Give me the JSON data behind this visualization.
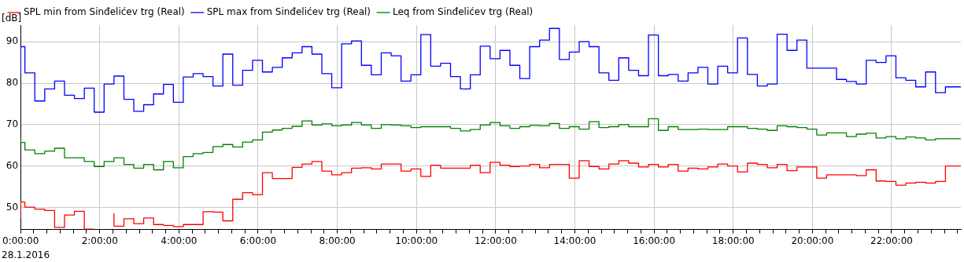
{
  "chart_data": {
    "type": "step",
    "ylabel": "[dB]",
    "annotations": [
      "28.1.2016"
    ],
    "x": [
      0,
      0.11,
      0.36,
      0.61,
      0.86,
      1.11,
      1.36,
      1.61,
      1.86,
      2.11,
      2.36,
      2.61,
      2.86,
      3.11,
      3.36,
      3.61,
      3.86,
      4.11,
      4.36,
      4.61,
      4.86,
      5.11,
      5.36,
      5.61,
      5.86,
      6.11,
      6.36,
      6.61,
      6.86,
      7.11,
      7.36,
      7.61,
      7.86,
      8.11,
      8.36,
      8.61,
      8.86,
      9.11,
      9.36,
      9.61,
      9.86,
      10.11,
      10.36,
      10.61,
      10.86,
      11.11,
      11.36,
      11.61,
      11.86,
      12.11,
      12.36,
      12.61,
      12.86,
      13.11,
      13.36,
      13.61,
      13.86,
      14.11,
      14.36,
      14.61,
      14.86,
      15.11,
      15.36,
      15.61,
      15.86,
      16.11,
      16.36,
      16.61,
      16.86,
      17.11,
      17.36,
      17.61,
      17.86,
      18.11,
      18.36,
      18.61,
      18.86,
      19.11,
      19.36,
      19.61,
      19.86,
      20.11,
      20.36,
      20.61,
      20.86,
      21.11,
      21.36,
      21.61,
      21.86,
      22.11,
      22.36,
      22.61,
      22.86,
      23.11,
      23.36,
      23.61,
      23.75
    ],
    "series": [
      {
        "name": "SPL min from Sinđelićev trg (Real)",
        "color": "#ff0000",
        "values": [
          47.5,
          51.3,
          50.1,
          49.6,
          49.3,
          45.2,
          48.2,
          49.1,
          44.8,
          null,
          48.6,
          45.5,
          47.3,
          46.1,
          47.5,
          45.9,
          45.7,
          45.4,
          45.9,
          45.9,
          49,
          48.9,
          46.8,
          52,
          53.6,
          53.1,
          58.4,
          57,
          57,
          59.7,
          60.5,
          61.1,
          58.8,
          57.9,
          58.4,
          59.5,
          59.6,
          59.3,
          60.5,
          60.5,
          58.8,
          59.3,
          57.5,
          60.2,
          59.5,
          59.5,
          59.5,
          60.2,
          58.4,
          60.9,
          60.2,
          59.9,
          60,
          60.4,
          59.6,
          60.4,
          60.4,
          57.1,
          61.3,
          59.9,
          59.3,
          60.5,
          61.3,
          60.7,
          59.8,
          60.4,
          59.8,
          60.4,
          58.8,
          59.5,
          59.3,
          59.8,
          60.5,
          60,
          58.6,
          60.7,
          60.4,
          59.6,
          60.4,
          58.9,
          59.8,
          59.8,
          57.1,
          57.9,
          57.9,
          57.9,
          57.7,
          59.1,
          56.4,
          56.3,
          55.4,
          55.9,
          56.1,
          55.9,
          56.3,
          60,
          60
        ]
      },
      {
        "name": "SPL max from Sinđelićev trg (Real)",
        "color": "#0000ff",
        "values": [
          82,
          88.8,
          82.5,
          75.7,
          78.6,
          80.5,
          77.1,
          76.3,
          78.8,
          73,
          79.8,
          81.7,
          76.1,
          73.2,
          74.8,
          77.4,
          79.7,
          75.4,
          81.5,
          82.3,
          81.6,
          79.3,
          87,
          79.5,
          83.1,
          85.5,
          82.7,
          83.8,
          86.1,
          87.3,
          88.8,
          87,
          82.3,
          78.9,
          89.5,
          90.2,
          84.3,
          82,
          87.3,
          86.6,
          80.5,
          82,
          91.7,
          84.1,
          84.8,
          81.6,
          78.6,
          82,
          88.9,
          85.9,
          87.9,
          84.3,
          81.1,
          88.8,
          90.4,
          93.2,
          85.7,
          87.5,
          90,
          88.8,
          82.5,
          80.7,
          86.1,
          83.1,
          81.8,
          91.6,
          81.8,
          82.1,
          80.5,
          82.5,
          83.8,
          79.8,
          84.1,
          82.5,
          90.9,
          82.1,
          79.3,
          79.8,
          91.8,
          87.9,
          90.4,
          83.6,
          83.6,
          83.6,
          80.9,
          80.4,
          79.8,
          85.5,
          85,
          86.6,
          81.3,
          80.7,
          79.1,
          82.7,
          77.7,
          79.1,
          79.1
        ]
      },
      {
        "name": "Leq from Sinđelićev trg (Real)",
        "color": "#008000",
        "values": [
          66.4,
          65.7,
          63.9,
          63,
          63.6,
          64.3,
          62,
          62,
          61.1,
          59.9,
          61.1,
          62,
          60.4,
          59.5,
          60.4,
          59.1,
          61.1,
          59.6,
          62.3,
          63,
          63.3,
          64.7,
          65.2,
          64.6,
          65.8,
          66.3,
          68.2,
          68.7,
          69.1,
          69.6,
          70.9,
          69.9,
          70.2,
          69.7,
          69.9,
          70.5,
          69.9,
          69.1,
          70,
          69.9,
          69.7,
          69.3,
          69.5,
          69.5,
          69.5,
          69.1,
          68.5,
          68.8,
          69.9,
          70.5,
          69.7,
          69.1,
          69.5,
          69.8,
          69.7,
          70.3,
          69.1,
          69.5,
          68.9,
          70.7,
          69.3,
          69.5,
          70,
          69.5,
          69.5,
          71.4,
          68.6,
          69.5,
          68.8,
          68.8,
          68.9,
          68.8,
          68.8,
          69.5,
          69.5,
          69.1,
          68.9,
          68.6,
          69.7,
          69.5,
          69.3,
          68.9,
          67.5,
          68,
          68,
          67.1,
          67.7,
          67.9,
          66.8,
          67.1,
          66.6,
          67,
          66.8,
          66.3,
          66.6,
          66.6,
          66.6
        ]
      }
    ],
    "xlim": [
      0,
      23.75
    ],
    "xticks": [
      {
        "value": 0,
        "label": "0:00:00"
      },
      {
        "value": 0.3333,
        "label": null
      },
      {
        "value": 0.6667,
        "label": null
      },
      {
        "value": 1,
        "label": null
      },
      {
        "value": 1.3333,
        "label": null
      },
      {
        "value": 1.6667,
        "label": null
      },
      {
        "value": 2,
        "label": "2:00:00"
      },
      {
        "value": 2.3333,
        "label": null
      },
      {
        "value": 2.6667,
        "label": null
      },
      {
        "value": 3,
        "label": null
      },
      {
        "value": 3.3333,
        "label": null
      },
      {
        "value": 3.6667,
        "label": null
      },
      {
        "value": 4,
        "label": "4:00:00"
      },
      {
        "value": 4.3333,
        "label": null
      },
      {
        "value": 4.6667,
        "label": null
      },
      {
        "value": 5,
        "label": null
      },
      {
        "value": 5.3333,
        "label": null
      },
      {
        "value": 5.6667,
        "label": null
      },
      {
        "value": 6,
        "label": "6:00:00"
      },
      {
        "value": 6.3333,
        "label": null
      },
      {
        "value": 6.6667,
        "label": null
      },
      {
        "value": 7,
        "label": null
      },
      {
        "value": 7.3333,
        "label": null
      },
      {
        "value": 7.6667,
        "label": null
      },
      {
        "value": 8,
        "label": "8:00:00"
      },
      {
        "value": 8.3333,
        "label": null
      },
      {
        "value": 8.6667,
        "label": null
      },
      {
        "value": 9,
        "label": null
      },
      {
        "value": 9.3333,
        "label": null
      },
      {
        "value": 9.6667,
        "label": null
      },
      {
        "value": 10,
        "label": "10:00:00"
      },
      {
        "value": 10.3333,
        "label": null
      },
      {
        "value": 10.6667,
        "label": null
      },
      {
        "value": 11,
        "label": null
      },
      {
        "value": 11.3333,
        "label": null
      },
      {
        "value": 11.6667,
        "label": null
      },
      {
        "value": 12,
        "label": "12:00:00"
      },
      {
        "value": 12.3333,
        "label": null
      },
      {
        "value": 12.6667,
        "label": null
      },
      {
        "value": 13,
        "label": null
      },
      {
        "value": 13.3333,
        "label": null
      },
      {
        "value": 13.6667,
        "label": null
      },
      {
        "value": 14,
        "label": "14:00:00"
      },
      {
        "value": 14.3333,
        "label": null
      },
      {
        "value": 14.6667,
        "label": null
      },
      {
        "value": 15,
        "label": null
      },
      {
        "value": 15.3333,
        "label": null
      },
      {
        "value": 15.6667,
        "label": null
      },
      {
        "value": 16,
        "label": "16:00:00"
      },
      {
        "value": 16.3333,
        "label": null
      },
      {
        "value": 16.6667,
        "label": null
      },
      {
        "value": 17,
        "label": null
      },
      {
        "value": 17.3333,
        "label": null
      },
      {
        "value": 17.6667,
        "label": null
      },
      {
        "value": 18,
        "label": "18:00:00"
      },
      {
        "value": 18.3333,
        "label": null
      },
      {
        "value": 18.6667,
        "label": null
      },
      {
        "value": 19,
        "label": null
      },
      {
        "value": 19.3333,
        "label": null
      },
      {
        "value": 19.6667,
        "label": null
      },
      {
        "value": 20,
        "label": "20:00:00"
      },
      {
        "value": 20.3333,
        "label": null
      },
      {
        "value": 20.6667,
        "label": null
      },
      {
        "value": 21,
        "label": null
      },
      {
        "value": 21.3333,
        "label": null
      },
      {
        "value": 21.6667,
        "label": null
      },
      {
        "value": 22,
        "label": "22:00:00"
      },
      {
        "value": 22.3333,
        "label": null
      },
      {
        "value": 22.6667,
        "label": null
      },
      {
        "value": 23,
        "label": null
      },
      {
        "value": 23.3333,
        "label": null
      },
      {
        "value": 23.6667,
        "label": null
      }
    ],
    "ylim": [
      44.7,
      94
    ],
    "yticks": [
      50,
      60,
      70,
      80,
      90
    ],
    "grid": true,
    "legend": "top left",
    "marker": "none",
    "line_style": "solid"
  }
}
